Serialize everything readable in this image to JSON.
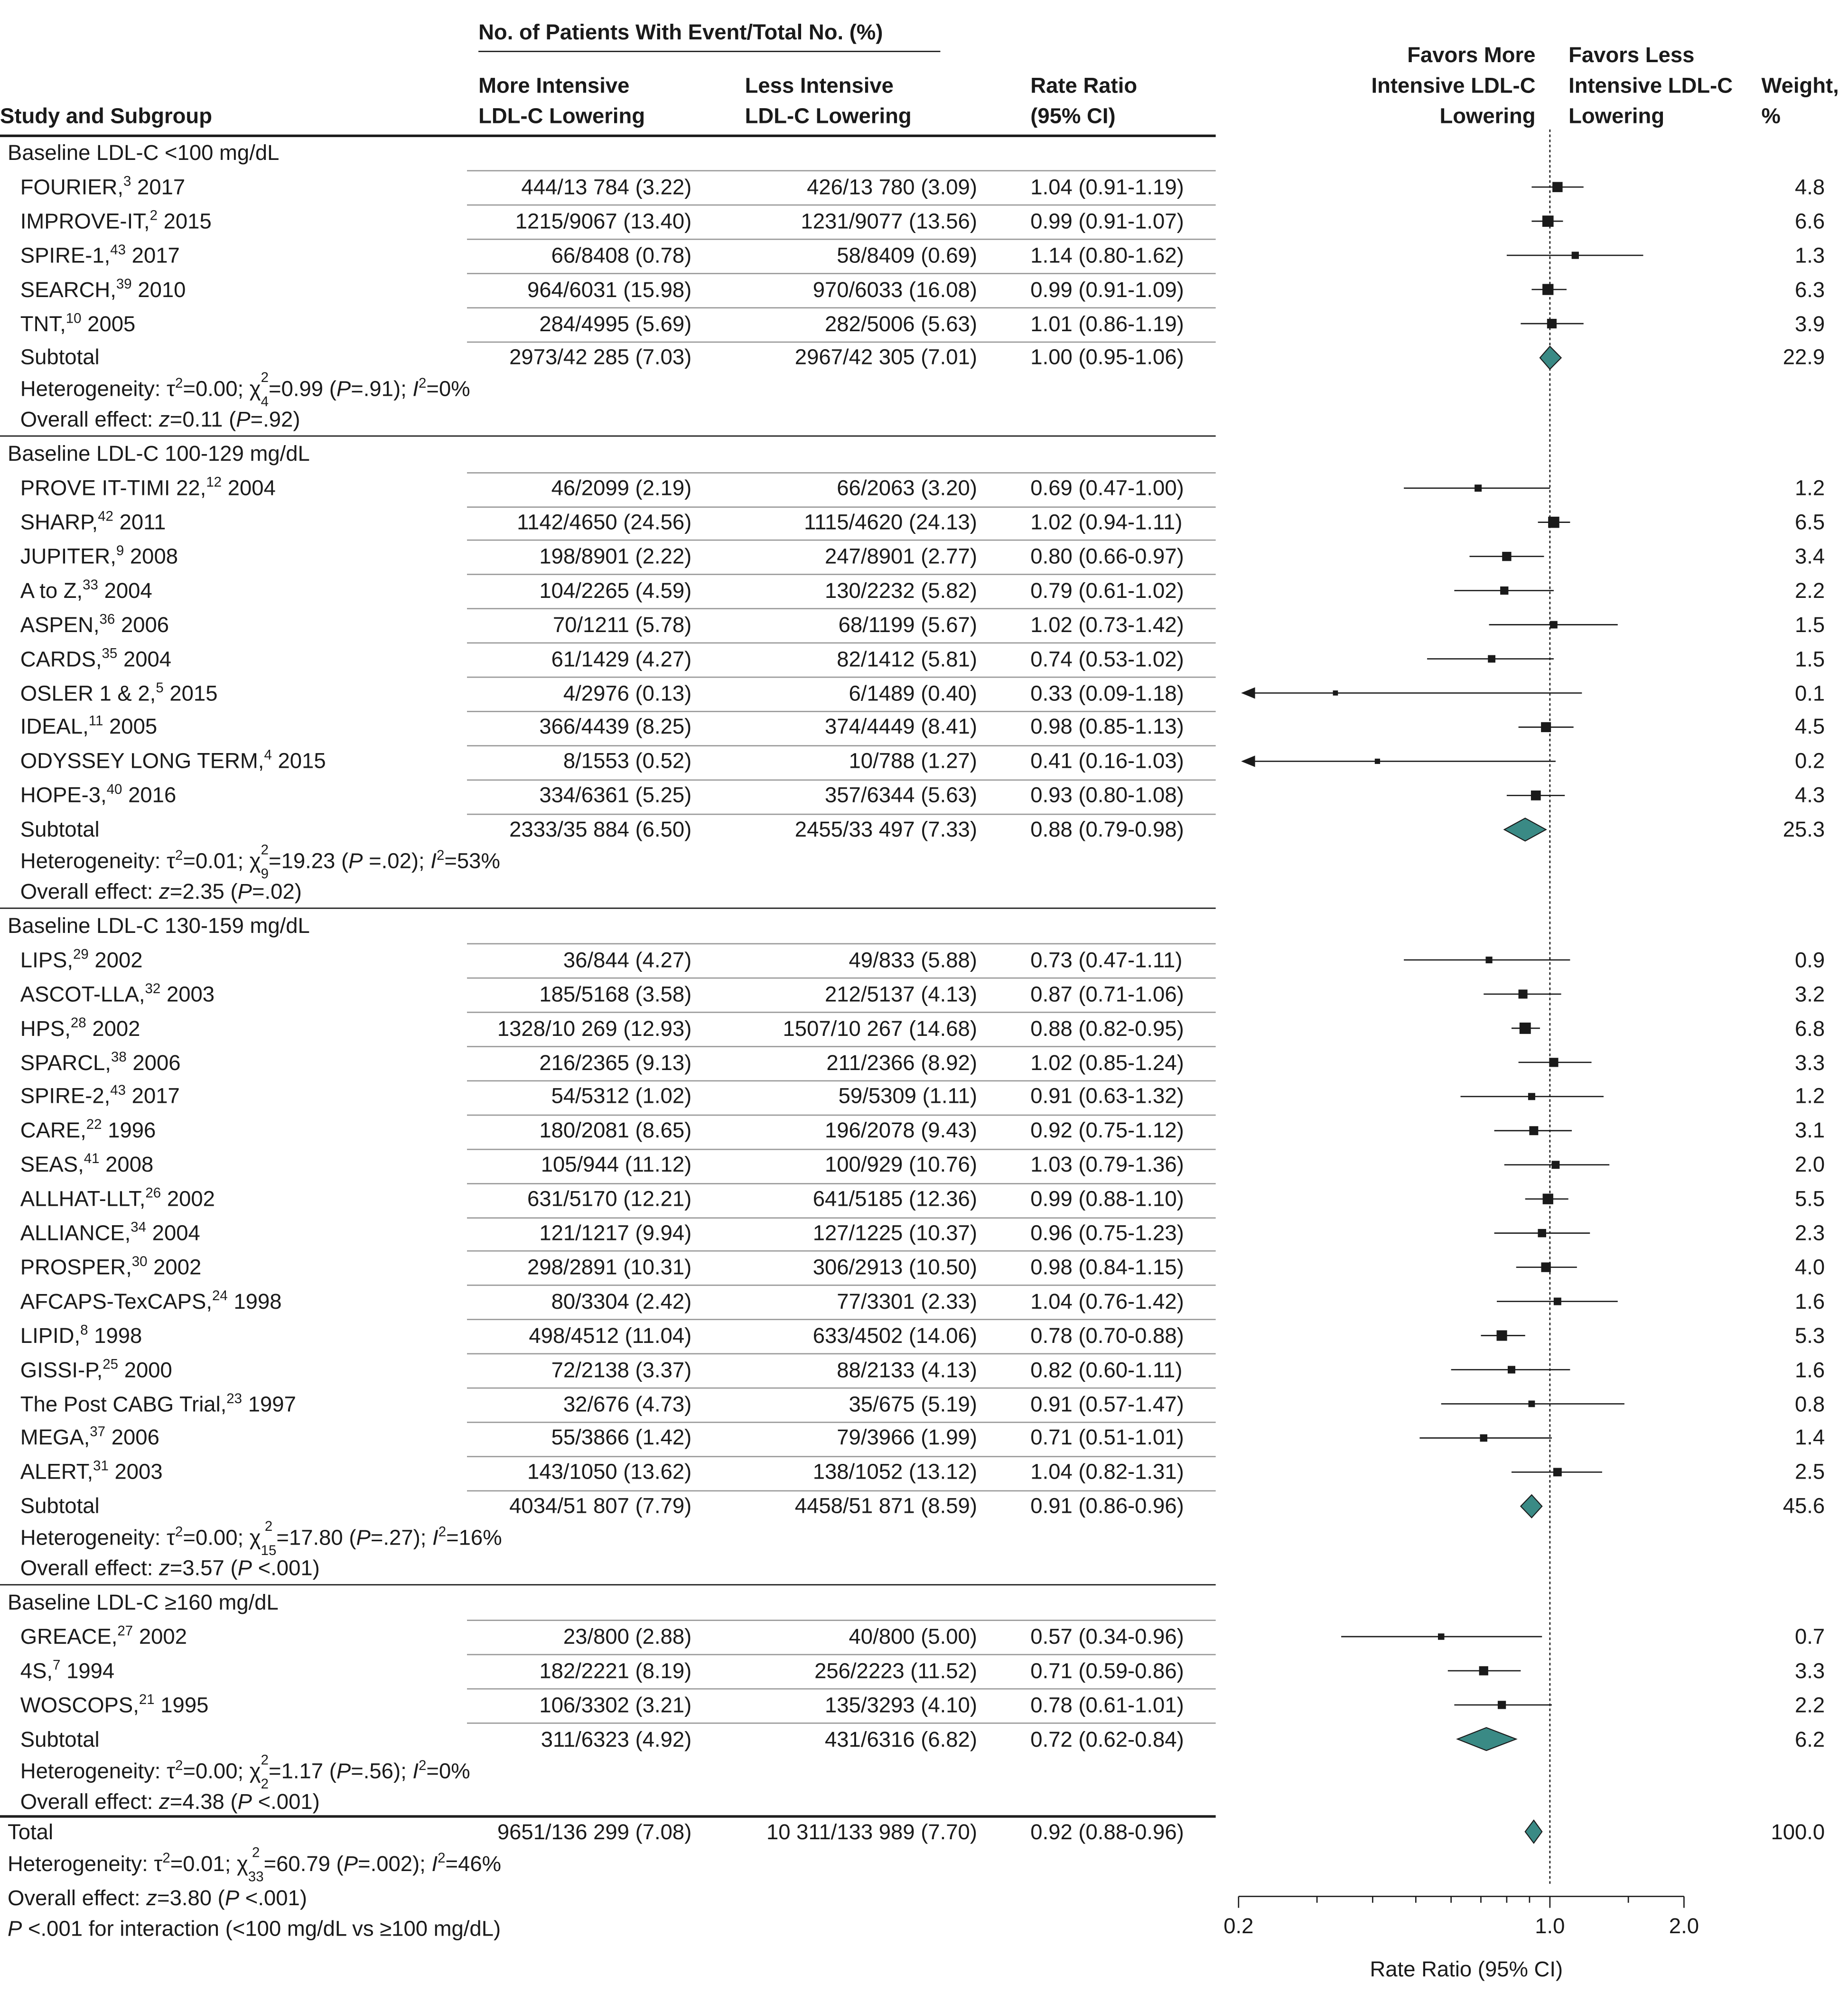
{
  "header": {
    "col_study": "Study and Subgroup",
    "group_header": "No. of Patients With Event/Total No. (%)",
    "col_more_1": "More Intensive",
    "col_more_2": "LDL-C Lowering",
    "col_less_1": "Less Intensive",
    "col_less_2": "LDL-C Lowering",
    "col_rr_1": "Rate Ratio",
    "col_rr_2": "(95% CI)",
    "favors_more_1": "Favors More",
    "favors_more_2": "Intensive LDL-C",
    "favors_more_3": "Lowering",
    "favors_less_1": "Favors Less",
    "favors_less_2": "Intensive LDL-C",
    "favors_less_3": "Lowering",
    "weight_1": "Weight,",
    "weight_2": "%"
  },
  "accent_color": "#3a8a85",
  "total_text": {
    "label": "Total",
    "more": "9651/136 299 (7.08)",
    "less": "10 311/133 989 (7.70)",
    "rr": "0.92 (0.88-0.96)",
    "weight": "100.0",
    "het_a": "Heterogeneity: τ",
    "het_b": "=0.01; χ",
    "het_sup": "2",
    "het_sub": "33",
    "het_c": "=60.79 (",
    "het_p": "P",
    "het_d": "=.002); ",
    "het_i": "I",
    "het_e": "=46%",
    "eff_a": "Overall effect: ",
    "eff_z": "z",
    "eff_b": "=3.80 (",
    "eff_p": "P",
    "eff_c": " <.001)",
    "int_p": "P",
    "int_a": " <.001 for interaction (<100 mg/dL vs ≥100 mg/dL)"
  },
  "chart_data": {
    "type": "forest",
    "xlabel": "Rate Ratio (95% CI)",
    "xscale": "log",
    "xlim": [
      0.2,
      2.0
    ],
    "xticks": [
      0.2,
      1.0,
      2.0
    ],
    "xtick_labels": [
      "0.2",
      "1.0",
      "2.0"
    ],
    "reference_line": 1.0,
    "groups": [
      {
        "title": "Baseline LDL-C <100 mg/dL",
        "studies": [
          {
            "name": "FOURIER,",
            "ref": "3",
            "year": "2017",
            "more": "444/13 784 (3.22)",
            "less": "426/13 780 (3.09)",
            "rr_text": "1.04 (0.91-1.19)",
            "rr": 1.04,
            "lo": 0.91,
            "hi": 1.19,
            "weight": "4.8"
          },
          {
            "name": "IMPROVE-IT,",
            "ref": "2",
            "year": "2015",
            "more": "1215/9067 (13.40)",
            "less": "1231/9077 (13.56)",
            "rr_text": "0.99 (0.91-1.07)",
            "rr": 0.99,
            "lo": 0.91,
            "hi": 1.07,
            "weight": "6.6"
          },
          {
            "name": "SPIRE-1,",
            "ref": "43",
            "year": "2017",
            "more": "66/8408 (0.78)",
            "less": "58/8409 (0.69)",
            "rr_text": "1.14 (0.80-1.62)",
            "rr": 1.14,
            "lo": 0.8,
            "hi": 1.62,
            "weight": "1.3"
          },
          {
            "name": "SEARCH,",
            "ref": "39",
            "year": "2010",
            "more": "964/6031 (15.98)",
            "less": "970/6033 (16.08)",
            "rr_text": "0.99 (0.91-1.09)",
            "rr": 0.99,
            "lo": 0.91,
            "hi": 1.09,
            "weight": "6.3"
          },
          {
            "name": "TNT,",
            "ref": "10",
            "year": "2005",
            "more": "284/4995 (5.69)",
            "less": "282/5006 (5.63)",
            "rr_text": "1.01 (0.86-1.19)",
            "rr": 1.01,
            "lo": 0.86,
            "hi": 1.19,
            "weight": "3.9"
          }
        ],
        "subtotal": {
          "label": "Subtotal",
          "more": "2973/42 285 (7.03)",
          "less": "2967/42 305 (7.01)",
          "rr_text": "1.00 (0.95-1.06)",
          "rr": 1.0,
          "lo": 0.95,
          "hi": 1.06,
          "weight": "22.9"
        },
        "het": {
          "tau2": "0.00",
          "chi_df": "4",
          "chi": "0.99",
          "p": ".91",
          "p_op": "=",
          "i2": "0%"
        },
        "effect": {
          "z": "0.11",
          "p": ".92",
          "p_op": "="
        }
      },
      {
        "title": "Baseline LDL-C 100-129 mg/dL",
        "studies": [
          {
            "name": "PROVE IT-TIMI 22,",
            "ref": "12",
            "year": "2004",
            "more": "46/2099 (2.19)",
            "less": "66/2063 (3.20)",
            "rr_text": "0.69 (0.47-1.00)",
            "rr": 0.69,
            "lo": 0.47,
            "hi": 1.0,
            "weight": "1.2"
          },
          {
            "name": "SHARP,",
            "ref": "42",
            "year": "2011",
            "more": "1142/4650 (24.56)",
            "less": "1115/4620 (24.13)",
            "rr_text": "1.02 (0.94-1.11)",
            "rr": 1.02,
            "lo": 0.94,
            "hi": 1.11,
            "weight": "6.5"
          },
          {
            "name": "JUPITER,",
            "ref": "9",
            "year": "2008",
            "more": "198/8901 (2.22)",
            "less": "247/8901 (2.77)",
            "rr_text": "0.80 (0.66-0.97)",
            "rr": 0.8,
            "lo": 0.66,
            "hi": 0.97,
            "weight": "3.4"
          },
          {
            "name": "A to Z,",
            "ref": "33",
            "year": "2004",
            "more": "104/2265 (4.59)",
            "less": "130/2232 (5.82)",
            "rr_text": "0.79 (0.61-1.02)",
            "rr": 0.79,
            "lo": 0.61,
            "hi": 1.02,
            "weight": "2.2"
          },
          {
            "name": "ASPEN,",
            "ref": "36",
            "year": "2006",
            "more": "70/1211 (5.78)",
            "less": "68/1199 (5.67)",
            "rr_text": "1.02 (0.73-1.42)",
            "rr": 1.02,
            "lo": 0.73,
            "hi": 1.42,
            "weight": "1.5"
          },
          {
            "name": "CARDS,",
            "ref": "35",
            "year": "2004",
            "more": "61/1429 (4.27)",
            "less": "82/1412 (5.81)",
            "rr_text": "0.74 (0.53-1.02)",
            "rr": 0.74,
            "lo": 0.53,
            "hi": 1.02,
            "weight": "1.5"
          },
          {
            "name": "OSLER 1 & 2,",
            "ref": "5",
            "year": "2015",
            "more": "4/2976 (0.13)",
            "less": "6/1489 (0.40)",
            "rr_text": "0.33 (0.09-1.18)",
            "rr": 0.33,
            "lo": 0.09,
            "hi": 1.18,
            "weight": "0.1"
          },
          {
            "name": "IDEAL,",
            "ref": "11",
            "year": "2005",
            "more": "366/4439 (8.25)",
            "less": "374/4449 (8.41)",
            "rr_text": "0.98 (0.85-1.13)",
            "rr": 0.98,
            "lo": 0.85,
            "hi": 1.13,
            "weight": "4.5"
          },
          {
            "name": "ODYSSEY LONG TERM,",
            "ref": "4",
            "year": "2015",
            "more": "8/1553 (0.52)",
            "less": "10/788 (1.27)",
            "rr_text": "0.41 (0.16-1.03)",
            "rr": 0.41,
            "lo": 0.16,
            "hi": 1.03,
            "weight": "0.2"
          },
          {
            "name": "HOPE-3,",
            "ref": "40",
            "year": "2016",
            "more": "334/6361 (5.25)",
            "less": "357/6344 (5.63)",
            "rr_text": "0.93 (0.80-1.08)",
            "rr": 0.93,
            "lo": 0.8,
            "hi": 1.08,
            "weight": "4.3"
          }
        ],
        "subtotal": {
          "label": "Subtotal",
          "more": "2333/35 884 (6.50)",
          "less": "2455/33 497 (7.33)",
          "rr_text": "0.88 (0.79-0.98)",
          "rr": 0.88,
          "lo": 0.79,
          "hi": 0.98,
          "weight": "25.3"
        },
        "het": {
          "tau2": "0.01",
          "chi_df": "9",
          "chi": "19.23",
          "p": ".02",
          "p_op": " =",
          "i2": "53%"
        },
        "effect": {
          "z": "2.35",
          "p": ".02",
          "p_op": "="
        }
      },
      {
        "title": "Baseline LDL-C 130-159 mg/dL",
        "studies": [
          {
            "name": "LIPS,",
            "ref": "29",
            "year": "2002",
            "more": "36/844 (4.27)",
            "less": "49/833 (5.88)",
            "rr_text": "0.73 (0.47-1.11)",
            "rr": 0.73,
            "lo": 0.47,
            "hi": 1.11,
            "weight": "0.9"
          },
          {
            "name": "ASCOT-LLA,",
            "ref": "32",
            "year": "2003",
            "more": "185/5168 (3.58)",
            "less": "212/5137 (4.13)",
            "rr_text": "0.87 (0.71-1.06)",
            "rr": 0.87,
            "lo": 0.71,
            "hi": 1.06,
            "weight": "3.2"
          },
          {
            "name": "HPS,",
            "ref": "28",
            "year": "2002",
            "more": "1328/10 269 (12.93)",
            "less": "1507/10 267 (14.68)",
            "rr_text": "0.88 (0.82-0.95)",
            "rr": 0.88,
            "lo": 0.82,
            "hi": 0.95,
            "weight": "6.8"
          },
          {
            "name": "SPARCL,",
            "ref": "38",
            "year": "2006",
            "more": "216/2365 (9.13)",
            "less": "211/2366 (8.92)",
            "rr_text": "1.02 (0.85-1.24)",
            "rr": 1.02,
            "lo": 0.85,
            "hi": 1.24,
            "weight": "3.3"
          },
          {
            "name": "SPIRE-2,",
            "ref": "43",
            "year": "2017",
            "more": "54/5312 (1.02)",
            "less": "59/5309 (1.11)",
            "rr_text": "0.91 (0.63-1.32)",
            "rr": 0.91,
            "lo": 0.63,
            "hi": 1.32,
            "weight": "1.2"
          },
          {
            "name": "CARE,",
            "ref": "22",
            "year": "1996",
            "more": "180/2081 (8.65)",
            "less": "196/2078 (9.43)",
            "rr_text": "0.92 (0.75-1.12)",
            "rr": 0.92,
            "lo": 0.75,
            "hi": 1.12,
            "weight": "3.1"
          },
          {
            "name": "SEAS,",
            "ref": "41",
            "year": "2008",
            "more": "105/944 (11.12)",
            "less": "100/929 (10.76)",
            "rr_text": "1.03 (0.79-1.36)",
            "rr": 1.03,
            "lo": 0.79,
            "hi": 1.36,
            "weight": "2.0"
          },
          {
            "name": "ALLHAT-LLT,",
            "ref": "26",
            "year": "2002",
            "more": "631/5170 (12.21)",
            "less": "641/5185 (12.36)",
            "rr_text": "0.99 (0.88-1.10)",
            "rr": 0.99,
            "lo": 0.88,
            "hi": 1.1,
            "weight": "5.5"
          },
          {
            "name": "ALLIANCE,",
            "ref": "34",
            "year": "2004",
            "more": "121/1217 (9.94)",
            "less": "127/1225 (10.37)",
            "rr_text": "0.96 (0.75-1.23)",
            "rr": 0.96,
            "lo": 0.75,
            "hi": 1.23,
            "weight": "2.3"
          },
          {
            "name": "PROSPER,",
            "ref": "30",
            "year": "2002",
            "more": "298/2891 (10.31)",
            "less": "306/2913 (10.50)",
            "rr_text": "0.98 (0.84-1.15)",
            "rr": 0.98,
            "lo": 0.84,
            "hi": 1.15,
            "weight": "4.0"
          },
          {
            "name": "AFCAPS-TexCAPS,",
            "ref": "24",
            "year": "1998",
            "more": "80/3304 (2.42)",
            "less": "77/3301 (2.33)",
            "rr_text": "1.04 (0.76-1.42)",
            "rr": 1.04,
            "lo": 0.76,
            "hi": 1.42,
            "weight": "1.6"
          },
          {
            "name": "LIPID,",
            "ref": "8",
            "year": "1998",
            "more": "498/4512 (11.04)",
            "less": "633/4502 (14.06)",
            "rr_text": "0.78 (0.70-0.88)",
            "rr": 0.78,
            "lo": 0.7,
            "hi": 0.88,
            "weight": "5.3"
          },
          {
            "name": "GISSI-P,",
            "ref": "25",
            "year": "2000",
            "more": "72/2138 (3.37)",
            "less": "88/2133 (4.13)",
            "rr_text": "0.82 (0.60-1.11)",
            "rr": 0.82,
            "lo": 0.6,
            "hi": 1.11,
            "weight": "1.6"
          },
          {
            "name": "The Post CABG Trial,",
            "ref": "23",
            "year": "1997",
            "more": "32/676 (4.73)",
            "less": "35/675 (5.19)",
            "rr_text": "0.91 (0.57-1.47)",
            "rr": 0.91,
            "lo": 0.57,
            "hi": 1.47,
            "weight": "0.8"
          },
          {
            "name": "MEGA,",
            "ref": "37",
            "year": "2006",
            "more": "55/3866 (1.42)",
            "less": "79/3966 (1.99)",
            "rr_text": "0.71 (0.51-1.01)",
            "rr": 0.71,
            "lo": 0.51,
            "hi": 1.01,
            "weight": "1.4"
          },
          {
            "name": "ALERT,",
            "ref": "31",
            "year": "2003",
            "more": "143/1050 (13.62)",
            "less": "138/1052 (13.12)",
            "rr_text": "1.04 (0.82-1.31)",
            "rr": 1.04,
            "lo": 0.82,
            "hi": 1.31,
            "weight": "2.5"
          }
        ],
        "subtotal": {
          "label": "Subtotal",
          "more": "4034/51 807 (7.79)",
          "less": "4458/51 871 (8.59)",
          "rr_text": "0.91 (0.86-0.96)",
          "rr": 0.91,
          "lo": 0.86,
          "hi": 0.96,
          "weight": "45.6"
        },
        "het": {
          "tau2": "0.00",
          "chi_df": "15",
          "chi": "17.80",
          "p": ".27",
          "p_op": "=",
          "i2": "16%"
        },
        "effect": {
          "z": "3.57",
          "p": "<.001",
          "p_op": " "
        }
      },
      {
        "title": "Baseline LDL-C ≥160 mg/dL",
        "studies": [
          {
            "name": "GREACE,",
            "ref": "27",
            "year": "2002",
            "more": "23/800 (2.88)",
            "less": "40/800 (5.00)",
            "rr_text": "0.57 (0.34-0.96)",
            "rr": 0.57,
            "lo": 0.34,
            "hi": 0.96,
            "weight": "0.7"
          },
          {
            "name": "4S,",
            "ref": "7",
            "year": "1994",
            "more": "182/2221 (8.19)",
            "less": "256/2223 (11.52)",
            "rr_text": "0.71 (0.59-0.86)",
            "rr": 0.71,
            "lo": 0.59,
            "hi": 0.86,
            "weight": "3.3"
          },
          {
            "name": "WOSCOPS,",
            "ref": "21",
            "year": "1995",
            "more": "106/3302 (3.21)",
            "less": "135/3293 (4.10)",
            "rr_text": "0.78 (0.61-1.01)",
            "rr": 0.78,
            "lo": 0.61,
            "hi": 1.01,
            "weight": "2.2"
          }
        ],
        "subtotal": {
          "label": "Subtotal",
          "more": "311/6323 (4.92)",
          "less": "431/6316 (6.82)",
          "rr_text": "0.72 (0.62-0.84)",
          "rr": 0.72,
          "lo": 0.62,
          "hi": 0.84,
          "weight": "6.2"
        },
        "het": {
          "tau2": "0.00",
          "chi_df": "2",
          "chi": "1.17",
          "p": ".56",
          "p_op": "=",
          "i2": "0%"
        },
        "effect": {
          "z": "4.38",
          "p": "<.001",
          "p_op": " "
        }
      }
    ],
    "total": {
      "rr": 0.92,
      "lo": 0.88,
      "hi": 0.96
    }
  }
}
